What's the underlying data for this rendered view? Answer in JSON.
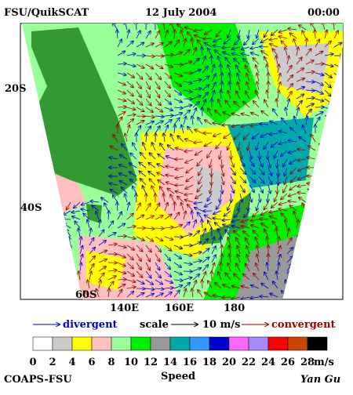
{
  "header": {
    "source": "FSU/QuikSCAT",
    "date": "12 July 2004",
    "time": "00:00"
  },
  "map": {
    "lat_labels": [
      "20S",
      "40S",
      "60S"
    ],
    "lon_labels": [
      "140E",
      "160E",
      "180"
    ]
  },
  "vector_legend": {
    "divergent": "divergent",
    "scale": "scale",
    "scale_value": "10 m/s",
    "convergent": "convergent",
    "divergent_color": "#0000cc",
    "convergent_color": "#990000"
  },
  "colorbar": {
    "colors": [
      "#ffffff",
      "#cccccc",
      "#ffff00",
      "#ffc0c0",
      "#99ff99",
      "#00ee00",
      "#999999",
      "#00aaaa",
      "#3399ff",
      "#0000cc",
      "#ff66ff",
      "#aa88ff",
      "#ff0000",
      "#cc4400",
      "#000000"
    ],
    "labels": [
      "0",
      "2",
      "4",
      "6",
      "8",
      "10",
      "12",
      "14",
      "16",
      "18",
      "20",
      "22",
      "24",
      "26",
      "28"
    ],
    "unit": "m/s",
    "title": "Speed"
  },
  "footer": {
    "org": "COAPS-FSU",
    "author": "Yan Gu"
  }
}
